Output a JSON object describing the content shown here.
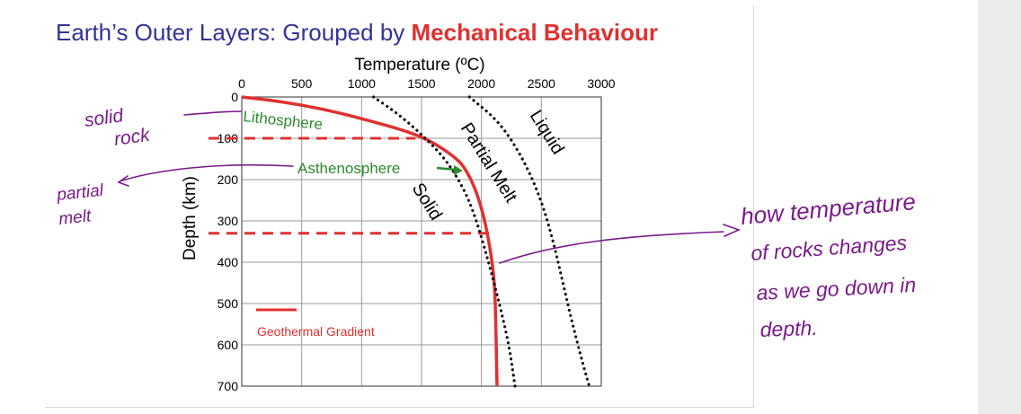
{
  "title": {
    "part1": "Earth’s Outer Layers: Grouped by ",
    "part2": "Mechanical Behaviour",
    "color1": "#333399",
    "color2": "#e03030"
  },
  "chart_data": {
    "type": "line",
    "xlabel": "Temperature (ºC)",
    "ylabel": "Depth (km)",
    "xlim": [
      0,
      3000
    ],
    "ylim": [
      0,
      700
    ],
    "x_ticks": [
      "0",
      "500",
      "1000",
      "1500",
      "2000",
      "2500",
      "3000"
    ],
    "y_ticks": [
      "0",
      "100",
      "200",
      "300",
      "400",
      "500",
      "600",
      "700"
    ],
    "series": [
      {
        "name": "Geothermal Gradient",
        "style": "solid",
        "color": "#e03030",
        "points": [
          [
            0,
            0
          ],
          [
            300,
            10
          ],
          [
            700,
            30
          ],
          [
            1100,
            60
          ],
          [
            1400,
            85
          ],
          [
            1600,
            110
          ],
          [
            1800,
            150
          ],
          [
            1880,
            180
          ],
          [
            1960,
            230
          ],
          [
            2030,
            300
          ],
          [
            2080,
            380
          ],
          [
            2110,
            450
          ],
          [
            2120,
            550
          ],
          [
            2130,
            700
          ]
        ]
      },
      {
        "name": "Solid boundary",
        "style": "dotted",
        "color": "#111111",
        "points": [
          [
            1100,
            0
          ],
          [
            1300,
            40
          ],
          [
            1500,
            90
          ],
          [
            1700,
            150
          ],
          [
            1850,
            220
          ],
          [
            1950,
            290
          ],
          [
            2060,
            400
          ],
          [
            2150,
            500
          ],
          [
            2230,
            600
          ],
          [
            2280,
            700
          ]
        ]
      },
      {
        "name": "Liquid boundary",
        "style": "dotted",
        "color": "#111111",
        "points": [
          [
            1900,
            0
          ],
          [
            2150,
            60
          ],
          [
            2350,
            150
          ],
          [
            2500,
            250
          ],
          [
            2600,
            350
          ],
          [
            2680,
            450
          ],
          [
            2760,
            550
          ],
          [
            2850,
            650
          ],
          [
            2900,
            700
          ]
        ]
      }
    ],
    "dashed_lines": [
      {
        "name": "lithosphere-base",
        "depth": 100,
        "x_end": 1450
      },
      {
        "name": "asthenosphere-base",
        "depth": 330,
        "x_end": 2080
      }
    ],
    "annotations": {
      "lithosphere": "Lithosphere",
      "asthenosphere": "Asthenosphere",
      "solid": "Solid",
      "partial_melt": "Partial Melt",
      "liquid": "Liquid"
    },
    "legend": {
      "label": "Geothermal Gradient"
    }
  },
  "handwriting": {
    "solid_rock_line1": "solid",
    "solid_rock_line2": "rock",
    "partial_melt_line1": "partial",
    "partial_melt_line2": "melt",
    "note_line1": "how temperature",
    "note_line2": "of rocks changes",
    "note_line3": "as we go down in",
    "note_line4": "depth.",
    "ink_color": "#7a1a8a"
  }
}
